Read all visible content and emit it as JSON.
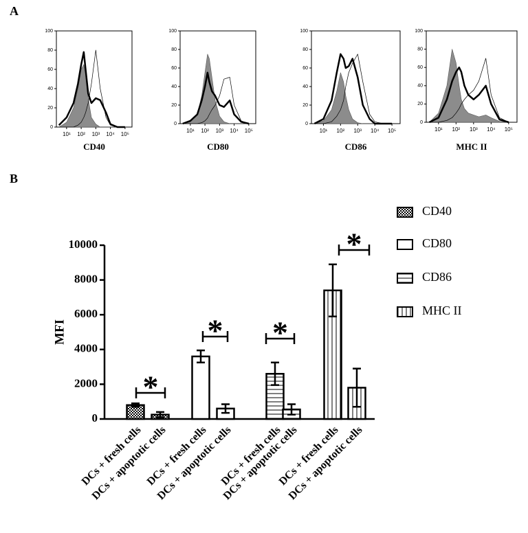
{
  "panel_labels": [
    "A",
    "B"
  ],
  "chart_data": [
    {
      "type": "line",
      "xlabel": "CD40",
      "xscale": "log",
      "xlim": [
        2,
        300000
      ],
      "ylim": [
        0,
        100
      ],
      "x": [
        3,
        10,
        30,
        60,
        100,
        150,
        200,
        300,
        500,
        1000,
        2000,
        5000,
        10000,
        30000,
        100000
      ],
      "xticks": [
        {
          "value": 10,
          "label": "10¹"
        },
        {
          "value": 100,
          "label": "10²"
        },
        {
          "value": 1000,
          "label": "10³"
        },
        {
          "value": 10000,
          "label": "10⁴"
        },
        {
          "value": 100000,
          "label": "10⁵"
        }
      ],
      "yticks": [
        0,
        20,
        40,
        60,
        80,
        100
      ],
      "series": [
        {
          "color": "#8c8c8c",
          "fill": true,
          "width": 0.6,
          "values": [
            0,
            5,
            20,
            40,
            60,
            65,
            55,
            30,
            10,
            3,
            0,
            0,
            0,
            0,
            0
          ]
        },
        {
          "color": "#000000",
          "fill": false,
          "width": 0.7,
          "values": [
            0,
            0,
            0,
            2,
            5,
            10,
            15,
            25,
            45,
            80,
            40,
            10,
            2,
            0,
            0
          ]
        },
        {
          "color": "#000000",
          "fill": false,
          "width": 2.5,
          "values": [
            2,
            10,
            25,
            45,
            65,
            78,
            60,
            35,
            25,
            30,
            28,
            15,
            3,
            0,
            0
          ]
        }
      ]
    },
    {
      "type": "line",
      "xlabel": "CD80",
      "xscale": "log",
      "xlim": [
        2,
        300000
      ],
      "ylim": [
        0,
        100
      ],
      "x": [
        3,
        10,
        30,
        60,
        100,
        150,
        200,
        300,
        500,
        1000,
        2000,
        5000,
        10000,
        30000,
        100000
      ],
      "xticks": [
        {
          "value": 10,
          "label": "10¹"
        },
        {
          "value": 100,
          "label": "10²"
        },
        {
          "value": 1000,
          "label": "10³"
        },
        {
          "value": 10000,
          "label": "10⁴"
        },
        {
          "value": 100000,
          "label": "10⁵"
        }
      ],
      "yticks": [
        0,
        20,
        40,
        60,
        80,
        100
      ],
      "series": [
        {
          "color": "#8c8c8c",
          "fill": true,
          "width": 0.6,
          "values": [
            0,
            2,
            10,
            30,
            55,
            75,
            70,
            50,
            25,
            8,
            2,
            0,
            0,
            0,
            0
          ]
        },
        {
          "color": "#000000",
          "fill": false,
          "width": 0.7,
          "values": [
            0,
            0,
            0,
            1,
            3,
            6,
            10,
            15,
            20,
            30,
            48,
            50,
            20,
            3,
            0
          ]
        },
        {
          "color": "#000000",
          "fill": false,
          "width": 2.5,
          "values": [
            0,
            3,
            10,
            25,
            40,
            55,
            45,
            35,
            30,
            20,
            18,
            25,
            10,
            2,
            0
          ]
        }
      ]
    },
    {
      "type": "line",
      "xlabel": "CD86",
      "xscale": "log",
      "xlim": [
        2,
        300000
      ],
      "ylim": [
        0,
        100
      ],
      "x": [
        3,
        10,
        30,
        60,
        100,
        150,
        200,
        300,
        500,
        1000,
        2000,
        5000,
        10000,
        30000,
        100000
      ],
      "xticks": [
        {
          "value": 10,
          "label": "10¹"
        },
        {
          "value": 100,
          "label": "10²"
        },
        {
          "value": 1000,
          "label": "10³"
        },
        {
          "value": 10000,
          "label": "10⁴"
        },
        {
          "value": 100000,
          "label": "10⁵"
        }
      ],
      "yticks": [
        0,
        20,
        40,
        60,
        80,
        100
      ],
      "series": [
        {
          "color": "#8c8c8c",
          "fill": true,
          "width": 0.6,
          "values": [
            0,
            3,
            15,
            35,
            55,
            45,
            30,
            15,
            5,
            1,
            0,
            0,
            0,
            0,
            0
          ]
        },
        {
          "color": "#000000",
          "fill": false,
          "width": 0.7,
          "values": [
            0,
            0,
            2,
            8,
            15,
            25,
            40,
            55,
            65,
            75,
            45,
            10,
            2,
            0,
            0
          ]
        },
        {
          "color": "#000000",
          "fill": false,
          "width": 2.5,
          "values": [
            0,
            5,
            25,
            55,
            75,
            70,
            60,
            62,
            70,
            50,
            20,
            5,
            0,
            0,
            0
          ]
        }
      ]
    },
    {
      "type": "line",
      "xlabel": "MHC II",
      "xscale": "log",
      "xlim": [
        2,
        300000
      ],
      "ylim": [
        0,
        100
      ],
      "x": [
        3,
        10,
        30,
        60,
        100,
        150,
        200,
        300,
        500,
        1000,
        2000,
        5000,
        10000,
        30000,
        100000
      ],
      "xticks": [
        {
          "value": 10,
          "label": "10¹"
        },
        {
          "value": 100,
          "label": "10²"
        },
        {
          "value": 1000,
          "label": "10³"
        },
        {
          "value": 10000,
          "label": "10⁴"
        },
        {
          "value": 100000,
          "label": "10⁵"
        }
      ],
      "yticks": [
        0,
        20,
        40,
        60,
        80,
        100
      ],
      "series": [
        {
          "color": "#8c8c8c",
          "fill": true,
          "width": 0.6,
          "values": [
            0,
            10,
            40,
            80,
            65,
            40,
            25,
            15,
            10,
            8,
            6,
            8,
            5,
            1,
            0
          ]
        },
        {
          "color": "#000000",
          "fill": false,
          "width": 0.7,
          "values": [
            0,
            0,
            2,
            5,
            10,
            15,
            20,
            25,
            30,
            35,
            45,
            70,
            30,
            5,
            0
          ]
        },
        {
          "color": "#000000",
          "fill": false,
          "width": 2.5,
          "values": [
            0,
            5,
            25,
            45,
            55,
            60,
            55,
            40,
            30,
            25,
            30,
            40,
            20,
            3,
            0
          ]
        }
      ]
    },
    {
      "type": "bar",
      "ylabel": "MFI",
      "ylim": [
        0,
        10000
      ],
      "yticks": [
        0,
        2000,
        4000,
        6000,
        8000,
        10000
      ],
      "categories": [
        "DCs + fresh cells",
        "DCs + apoptotic cells",
        "DCs + fresh cells",
        "DCs + apoptotic cells",
        "DCs + fresh cells",
        "DCs + apoptotic cells",
        "DCs + fresh cells",
        "DCs + apoptotic cells"
      ],
      "annotations": [
        "*",
        "*",
        "*",
        "*"
      ],
      "series": [
        {
          "name": "CD40",
          "pattern": "checker",
          "values": [
            800,
            250,
            null,
            null,
            null,
            null,
            null,
            null
          ],
          "errors": [
            100,
            150,
            null,
            null,
            null,
            null,
            null,
            null
          ]
        },
        {
          "name": "CD80",
          "pattern": "none",
          "values": [
            null,
            null,
            3600,
            600,
            null,
            null,
            null,
            null
          ],
          "errors": [
            null,
            null,
            350,
            250,
            null,
            null,
            null,
            null
          ]
        },
        {
          "name": "CD86",
          "pattern": "hlines",
          "values": [
            null,
            null,
            null,
            null,
            2600,
            550,
            null,
            null
          ],
          "errors": [
            null,
            null,
            null,
            null,
            650,
            300,
            null,
            null
          ]
        },
        {
          "name": "MHC II",
          "pattern": "vlines",
          "values": [
            null,
            null,
            null,
            null,
            null,
            null,
            7400,
            1800
          ],
          "errors": [
            null,
            null,
            null,
            null,
            null,
            null,
            1500,
            1100
          ]
        }
      ]
    }
  ]
}
